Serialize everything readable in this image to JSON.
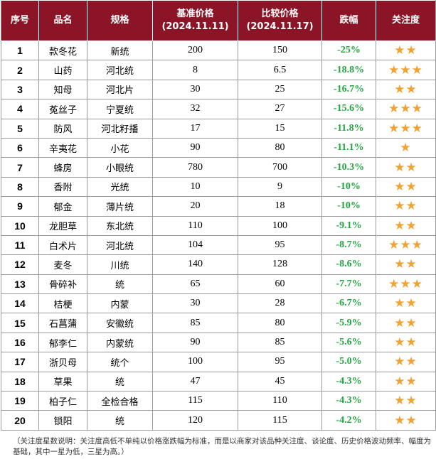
{
  "headers": {
    "index": "序号",
    "name": "品名",
    "spec": "规格",
    "base_price": "基准价格",
    "base_date": "(2024.11.11)",
    "compare_price": "比较价格",
    "compare_date": "(2024.11.17)",
    "change": "跌幅",
    "attention": "关注度"
  },
  "rows": [
    {
      "index": "1",
      "name": "款冬花",
      "spec": "新统",
      "base": "200",
      "compare": "150",
      "change": "-25%",
      "stars": "★★"
    },
    {
      "index": "2",
      "name": "山药",
      "spec": "河北统",
      "base": "8",
      "compare": "6.5",
      "change": "-18.8%",
      "stars": "★★★"
    },
    {
      "index": "3",
      "name": "知母",
      "spec": "河北片",
      "base": "30",
      "compare": "25",
      "change": "-16.7%",
      "stars": "★★"
    },
    {
      "index": "4",
      "name": "菟丝子",
      "spec": "宁夏统",
      "base": "32",
      "compare": "27",
      "change": "-15.6%",
      "stars": "★★★"
    },
    {
      "index": "5",
      "name": "防风",
      "spec": "河北籽播",
      "base": "17",
      "compare": "15",
      "change": "-11.8%",
      "stars": "★★★"
    },
    {
      "index": "6",
      "name": "辛夷花",
      "spec": "小花",
      "base": "90",
      "compare": "80",
      "change": "-11.1%",
      "stars": "★"
    },
    {
      "index": "7",
      "name": "蜂房",
      "spec": "小眼统",
      "base": "780",
      "compare": "700",
      "change": "-10.3%",
      "stars": "★★"
    },
    {
      "index": "8",
      "name": "香附",
      "spec": "光统",
      "base": "10",
      "compare": "9",
      "change": "-10%",
      "stars": "★★"
    },
    {
      "index": "9",
      "name": "郁金",
      "spec": "薄片统",
      "base": "20",
      "compare": "18",
      "change": "-10%",
      "stars": "★★"
    },
    {
      "index": "10",
      "name": "龙胆草",
      "spec": "东北统",
      "base": "110",
      "compare": "100",
      "change": "-9.1%",
      "stars": "★★"
    },
    {
      "index": "11",
      "name": "白术片",
      "spec": "河北统",
      "base": "104",
      "compare": "95",
      "change": "-8.7%",
      "stars": "★★★"
    },
    {
      "index": "12",
      "name": "麦冬",
      "spec": "川统",
      "base": "140",
      "compare": "128",
      "change": "-8.6%",
      "stars": "★★"
    },
    {
      "index": "13",
      "name": "骨碎补",
      "spec": "统",
      "base": "65",
      "compare": "60",
      "change": "-7.7%",
      "stars": "★★★"
    },
    {
      "index": "14",
      "name": "桔梗",
      "spec": "内蒙",
      "base": "30",
      "compare": "28",
      "change": "-6.7%",
      "stars": "★★"
    },
    {
      "index": "15",
      "name": "石菖蒲",
      "spec": "安徽统",
      "base": "85",
      "compare": "80",
      "change": "-5.9%",
      "stars": "★★"
    },
    {
      "index": "16",
      "name": "郁李仁",
      "spec": "内蒙统",
      "base": "90",
      "compare": "85",
      "change": "-5.6%",
      "stars": "★★"
    },
    {
      "index": "17",
      "name": "浙贝母",
      "spec": "统个",
      "base": "100",
      "compare": "95",
      "change": "-5.0%",
      "stars": "★★"
    },
    {
      "index": "18",
      "name": "草果",
      "spec": "统",
      "base": "47",
      "compare": "45",
      "change": "-4.3%",
      "stars": "★★"
    },
    {
      "index": "19",
      "name": "柏子仁",
      "spec": "全检合格",
      "base": "115",
      "compare": "110",
      "change": "-4.3%",
      "stars": "★★"
    },
    {
      "index": "20",
      "name": "锁阳",
      "spec": "统",
      "base": "120",
      "compare": "115",
      "change": "-4.2%",
      "stars": "★★"
    }
  ],
  "note": "（关注度星数说明：关注度高低不单纯以价格涨跌幅为标准，而是以商家对该品种关注度、谈论度、历史价格波动频率、幅度为基础，其中一星为低，三星为高。）",
  "colors": {
    "header_bg": "#8b1526",
    "change_text": "#22a640",
    "star": "#f0a332"
  }
}
